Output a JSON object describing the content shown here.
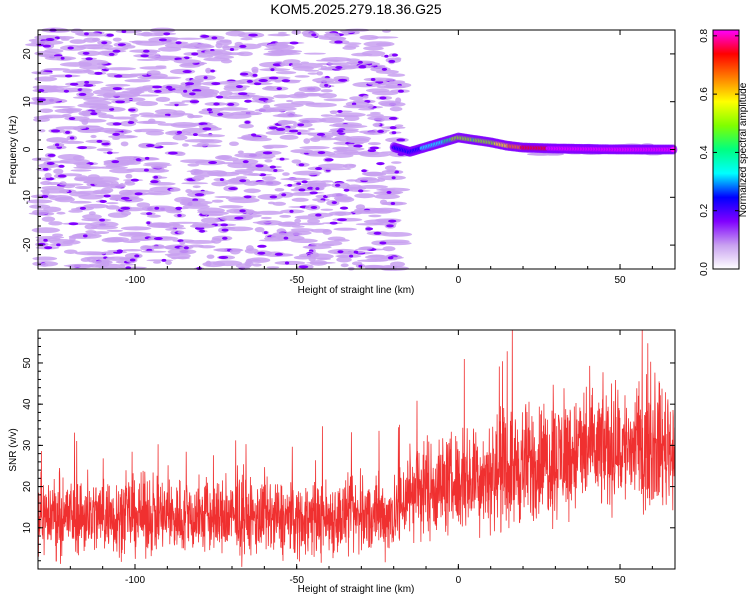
{
  "title": "KOM5.2025.279.18.36.G25",
  "chart_data": [
    {
      "type": "heatmap",
      "name": "spectrogram",
      "xlabel": "Height of straight line (km)",
      "ylabel": "Frequency (Hz)",
      "xlim": [
        -130,
        67
      ],
      "ylim": [
        -25,
        25
      ],
      "xticks": [
        -100,
        -50,
        0,
        50
      ],
      "xtick_labels": [
        "-100",
        "-50",
        "0",
        "50"
      ],
      "yticks": [
        -20,
        -10,
        0,
        10,
        20
      ],
      "ytick_labels": [
        "-20",
        "-10",
        "0",
        "10",
        "20"
      ],
      "colorbar": {
        "label": "Normalized spectral amplitude",
        "range": [
          0.0,
          0.82
        ],
        "ticks": [
          0.0,
          0.2,
          0.4,
          0.6,
          0.8
        ],
        "tick_labels": [
          "0.0",
          "0.2",
          "0.4",
          "0.6",
          "0.8"
        ],
        "colors": [
          "#ffffff",
          "#c8a0f0",
          "#8000ff",
          "#0000ff",
          "#00ffff",
          "#00ff80",
          "#80ff00",
          "#ffff00",
          "#ff8000",
          "#ff0000",
          "#ff00ff"
        ]
      },
      "signal_track": {
        "description_points_km_hz_amp": [
          [
            -20,
            0.5,
            0.2
          ],
          [
            -15,
            -0.5,
            0.25
          ],
          [
            -10,
            0.5,
            0.3
          ],
          [
            -5,
            1.5,
            0.35
          ],
          [
            0,
            2.5,
            0.5
          ],
          [
            5,
            2.0,
            0.45
          ],
          [
            10,
            1.5,
            0.5
          ],
          [
            15,
            0.8,
            0.6
          ],
          [
            20,
            0.4,
            0.7
          ],
          [
            30,
            0.2,
            0.8
          ],
          [
            40,
            0.1,
            0.82
          ],
          [
            50,
            0.0,
            0.82
          ],
          [
            67,
            0.0,
            0.8
          ]
        ]
      }
    },
    {
      "type": "line",
      "name": "snr",
      "xlabel": "Height of straight line (km)",
      "ylabel": "SNR (v/v)",
      "xlim": [
        -130,
        67
      ],
      "ylim": [
        0,
        58
      ],
      "xticks": [
        -100,
        -50,
        0,
        50
      ],
      "xtick_labels": [
        "-100",
        "-50",
        "0",
        "50"
      ],
      "yticks": [
        10,
        20,
        30,
        40,
        50
      ],
      "ytick_labels": [
        "10",
        "20",
        "30",
        "40",
        "50"
      ],
      "color": "#f03030",
      "trend": {
        "x": [
          -130,
          -100,
          -50,
          -20,
          -15,
          0,
          20,
          40,
          67
        ],
        "mean": [
          13,
          13,
          12,
          13,
          19,
          21,
          25,
          29,
          30
        ],
        "spread": [
          7,
          7,
          7,
          7,
          9,
          9,
          11,
          11,
          11
        ]
      }
    }
  ]
}
